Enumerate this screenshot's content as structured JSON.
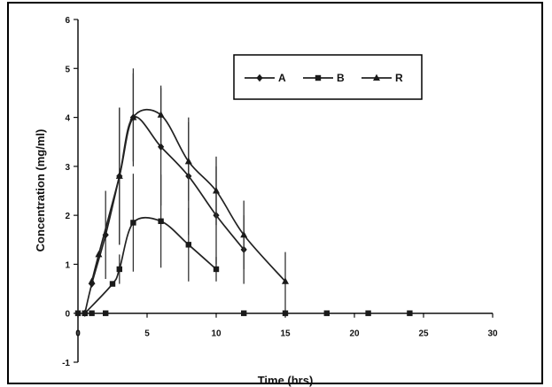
{
  "chart_data": {
    "type": "line",
    "xlabel": "Time (hrs)",
    "ylabel": "Concentration (mg/ml)",
    "xlim": [
      0,
      30
    ],
    "ylim": [
      -1,
      6
    ],
    "x_ticks": [
      "0",
      "5",
      "10",
      "15",
      "20",
      "25",
      "30"
    ],
    "y_ticks": [
      "-1",
      "0",
      "1",
      "2",
      "3",
      "4",
      "5",
      "6"
    ],
    "grid": false,
    "legend_placement": "top-right",
    "series": [
      {
        "name": "A",
        "marker": "diamond",
        "x": [
          0.5,
          1,
          2,
          3,
          4,
          6,
          8,
          10,
          12
        ],
        "y": [
          0.0,
          0.6,
          1.6,
          2.8,
          4.0,
          3.4,
          2.8,
          2.0,
          1.3
        ],
        "err": [
          0,
          0,
          0.9,
          1.4,
          0.9,
          1.2,
          1.2,
          1.0,
          0.7
        ]
      },
      {
        "name": "B",
        "marker": "square",
        "x": [
          0.5,
          2.5,
          3,
          4,
          6,
          8,
          10
        ],
        "y": [
          0.0,
          0.6,
          0.9,
          1.85,
          1.88,
          1.4,
          0.9
        ],
        "err": [
          0,
          0,
          0.3,
          1.0,
          0.95,
          0.75,
          0.25
        ]
      },
      {
        "name": "R",
        "marker": "triangle",
        "x": [
          1,
          1.5,
          3,
          4,
          6,
          8,
          10,
          12,
          15
        ],
        "y": [
          0.65,
          1.2,
          2.8,
          4.0,
          4.05,
          3.1,
          2.5,
          1.6,
          0.65
        ],
        "err": [
          0,
          0,
          1.4,
          1.0,
          0.6,
          0.8,
          0.7,
          0.7,
          0.6
        ]
      },
      {
        "name": "",
        "marker": "square",
        "x": [
          0,
          0.5,
          1,
          2,
          12,
          15,
          18,
          21,
          24
        ],
        "y": [
          0,
          0,
          0,
          0,
          0,
          0,
          0,
          0,
          0
        ],
        "err": []
      }
    ],
    "colors": {
      "axis": "#111111",
      "line": "#222222",
      "marker": "#1a1a1a",
      "error": "#333333",
      "frame": "#000000",
      "legend_border": "#000000"
    }
  }
}
